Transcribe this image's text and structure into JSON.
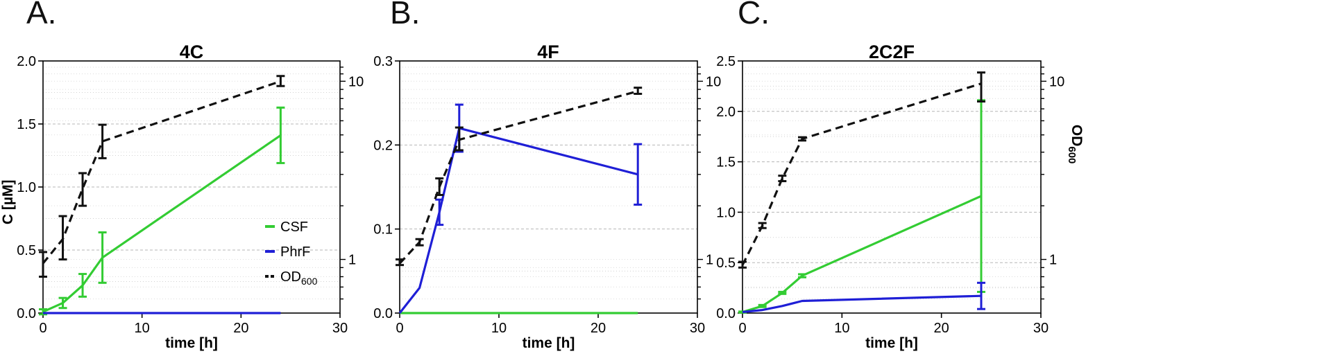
{
  "chart_data": [
    {
      "type": "line",
      "panel_label": "A.",
      "title": "4C",
      "xlabel": "time [h]",
      "ylabel": "C [µM]",
      "y2label": "",
      "xlim": [
        0,
        30
      ],
      "ylim": [
        0,
        2.0
      ],
      "y2_scale": "log",
      "y2lim": [
        0.5,
        13
      ],
      "x_ticks": [
        "0",
        "10",
        "20",
        "30"
      ],
      "y_ticks": [
        "0.0",
        "0.5",
        "1.0",
        "1.5",
        "2.0"
      ],
      "y2_ticks": [
        "1",
        "10"
      ],
      "grid": true,
      "legend_position": "lower-right",
      "series": [
        {
          "name": "CSF",
          "axis": "left",
          "color": "#33cc33",
          "dash": "solid",
          "x": [
            0,
            2,
            4,
            6,
            24
          ],
          "y": [
            0.01,
            0.08,
            0.22,
            0.44,
            1.41
          ],
          "err": [
            0.02,
            0.04,
            0.09,
            0.2,
            0.22
          ]
        },
        {
          "name": "PhrF",
          "axis": "left",
          "color": "#1f1fd6",
          "dash": "solid",
          "x": [
            0,
            2,
            4,
            6,
            24
          ],
          "y": [
            0,
            0,
            0,
            0,
            0
          ],
          "err": null
        },
        {
          "name": "OD600",
          "axis": "right",
          "color": "#111111",
          "dash": "dashed",
          "x": [
            0,
            2,
            4,
            6,
            24
          ],
          "y": [
            0.95,
            1.3,
            2.5,
            4.6,
            10.0
          ],
          "err_low": [
            0.8,
            1.0,
            2.0,
            3.7,
            9.4
          ],
          "err_high": [
            1.1,
            1.75,
            3.05,
            5.7,
            10.7
          ]
        }
      ],
      "legend": [
        {
          "label": "CSF",
          "sub": "",
          "color": "#33cc33",
          "dash": "solid"
        },
        {
          "label": "PhrF",
          "sub": "",
          "color": "#1f1fd6",
          "dash": "solid"
        },
        {
          "label": "OD",
          "sub": "600",
          "color": "#111111",
          "dash": "dashed"
        }
      ]
    },
    {
      "type": "line",
      "panel_label": "B.",
      "title": "4F",
      "xlabel": "time [h]",
      "ylabel": "",
      "y2label": "",
      "xlim": [
        0,
        30
      ],
      "ylim": [
        0,
        0.3
      ],
      "y2_scale": "log",
      "y2lim": [
        0.5,
        13
      ],
      "x_ticks": [
        "0",
        "10",
        "20",
        "30"
      ],
      "y_ticks": [
        "0.0",
        "0.1",
        "0.2",
        "0.3"
      ],
      "y2_ticks": [
        "1",
        "10"
      ],
      "grid": true,
      "legend_position": "",
      "series": [
        {
          "name": "CSF",
          "axis": "left",
          "color": "#33cc33",
          "dash": "solid",
          "x": [
            0,
            2,
            4,
            6,
            24
          ],
          "y": [
            0,
            0,
            0,
            0,
            0
          ],
          "err": null
        },
        {
          "name": "PhrF",
          "axis": "left",
          "color": "#1f1fd6",
          "dash": "solid",
          "x": [
            0,
            2,
            4,
            6,
            24
          ],
          "y": [
            0,
            0.03,
            0.12,
            0.22,
            0.165
          ],
          "err": [
            0,
            0,
            0.015,
            0.028,
            0.036
          ]
        },
        {
          "name": "OD600",
          "axis": "right",
          "color": "#111111",
          "dash": "dashed",
          "x": [
            0,
            2,
            4,
            6,
            24
          ],
          "y": [
            0.95,
            1.25,
            2.55,
            4.7,
            8.8
          ],
          "err_low": [
            0.93,
            1.2,
            2.3,
            4.1,
            8.5
          ],
          "err_high": [
            1.0,
            1.3,
            2.85,
            5.5,
            9.2
          ]
        }
      ],
      "legend": []
    },
    {
      "type": "line",
      "panel_label": "C.",
      "title": "2C2F",
      "xlabel": "time [h]",
      "ylabel": "",
      "y2label": "OD",
      "y2label_sub": "600",
      "xlim": [
        0,
        30
      ],
      "ylim": [
        0,
        2.5
      ],
      "y2_scale": "log",
      "y2lim": [
        0.5,
        13
      ],
      "x_ticks": [
        "0",
        "10",
        "20",
        "30"
      ],
      "y_ticks": [
        "0.0",
        "0.5",
        "1.0",
        "1.5",
        "2.0",
        "2.5"
      ],
      "y2_ticks": [
        "1",
        "10"
      ],
      "grid": true,
      "legend_position": "",
      "series": [
        {
          "name": "CSF",
          "axis": "left",
          "color": "#33cc33",
          "dash": "solid",
          "x": [
            0,
            2,
            4,
            6,
            24
          ],
          "y": [
            0.01,
            0.07,
            0.2,
            0.37,
            1.16
          ],
          "err": [
            0.005,
            0.01,
            0.01,
            0.015,
            0.95
          ]
        },
        {
          "name": "PhrF",
          "axis": "left",
          "color": "#1f1fd6",
          "dash": "solid",
          "x": [
            0,
            2,
            4,
            6,
            24
          ],
          "y": [
            0.01,
            0.03,
            0.07,
            0.12,
            0.17
          ],
          "err": [
            0,
            0,
            0,
            0,
            0.13
          ]
        },
        {
          "name": "OD600",
          "axis": "right",
          "color": "#111111",
          "dash": "dashed",
          "x": [
            0,
            2,
            4,
            6,
            24
          ],
          "y": [
            0.93,
            1.55,
            2.85,
            4.75,
            9.7
          ],
          "err_low": [
            0.9,
            1.5,
            2.75,
            4.65,
            7.7
          ],
          "err_high": [
            0.97,
            1.6,
            2.95,
            4.85,
            11.2
          ]
        }
      ],
      "legend": []
    }
  ]
}
